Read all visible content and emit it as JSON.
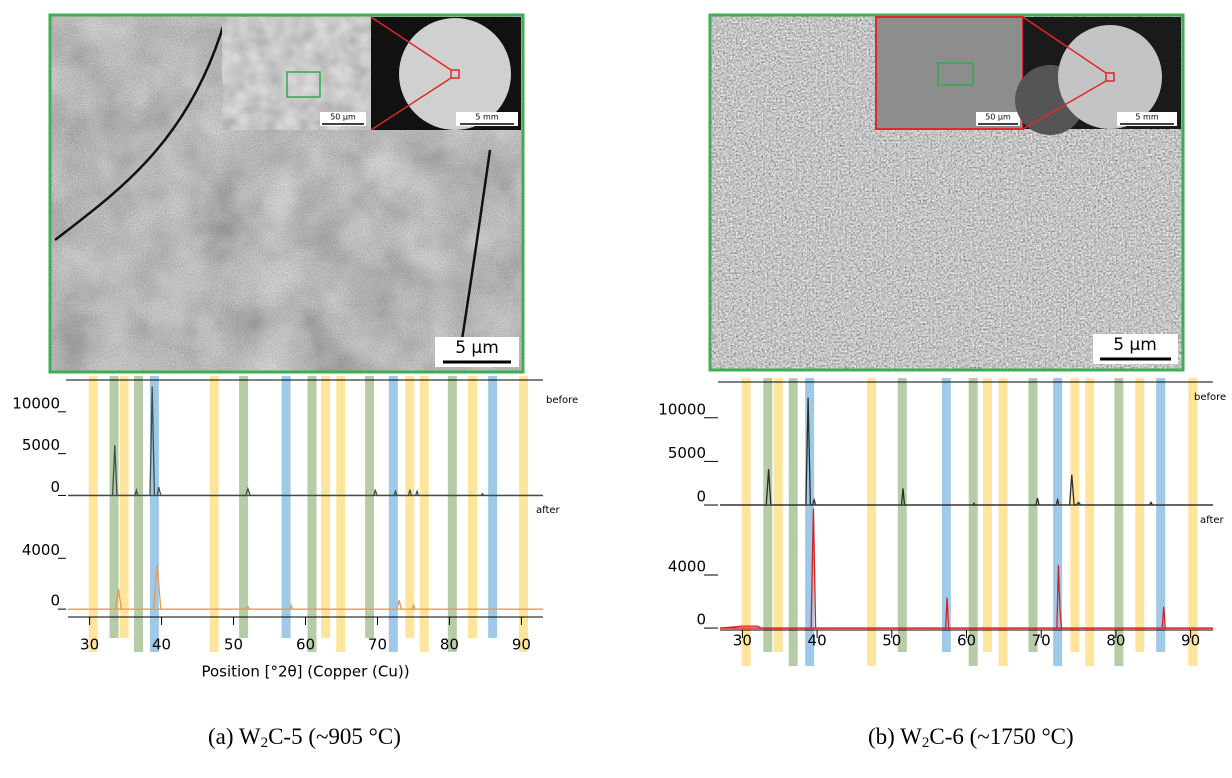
{
  "reference_bands": [
    {
      "color": "#ffe08a",
      "positions": [
        30.5,
        34.8,
        47.3,
        62.8,
        64.9,
        74.5,
        76.5,
        83.2,
        90.3
      ]
    },
    {
      "color": "#a8c398",
      "positions": [
        33.4,
        36.8,
        51.4,
        60.9,
        68.9,
        80.4
      ]
    },
    {
      "color": "#8dc0e4",
      "positions": [
        39.0,
        57.3,
        72.2,
        86.0
      ]
    }
  ],
  "panels": [
    {
      "caption": {
        "prefix": "(a) W",
        "subscript": "2",
        "suffix": "C-5 (~905 °C)"
      },
      "sem": {
        "scale_bar": "5 µm",
        "inset_scale": "50 µm",
        "overview_scale": "5 mm"
      },
      "xrd": {
        "type": "line",
        "xlim": [
          27,
          93
        ],
        "xticks": [
          30,
          40,
          50,
          60,
          70,
          80,
          90
        ],
        "x_label": "Position [°2θ] (Copper (Cu))",
        "subplots": [
          {
            "label": "before",
            "color": "#3f4d47",
            "ylim": [
              -1500,
              13800
            ],
            "yticks": [
              0,
              5000,
              10000
            ],
            "x": [
              27,
              33.2,
              33.5,
              33.8,
              36.3,
              36.5,
              36.7,
              38.4,
              38.7,
              39.0,
              39.4,
              39.6,
              39.9,
              51.7,
              52,
              52.3,
              69.5,
              69.7,
              69.9,
              72.3,
              72.5,
              72.7,
              74.3,
              74.5,
              74.7,
              75.3,
              75.5,
              75.7,
              84.4,
              84.6,
              84.8,
              93
            ],
            "values": [
              0,
              0,
              6000,
              0,
              0,
              600,
              0,
              0,
              13000,
              0,
              0,
              1000,
              0,
              0,
              800,
              0,
              0,
              700,
              0,
              0,
              500,
              0,
              0,
              700,
              0,
              0,
              500,
              0,
              0,
              200,
              0,
              0
            ]
          },
          {
            "label": "after",
            "color": "#e59a58",
            "ylim": [
              -700,
              7800
            ],
            "yticks": [
              0,
              4000
            ],
            "x": [
              27,
              33.6,
              34,
              34.4,
              38.9,
              39.4,
              39.9,
              51.8,
              52,
              52.2,
              57.8,
              58,
              58.2,
              72.7,
              73,
              73.3,
              74.8,
              75,
              75.2,
              93
            ],
            "values": [
              0,
              0,
              1600,
              0,
              0,
              3500,
              0,
              0,
              200,
              0,
              0,
              300,
              0,
              0,
              700,
              0,
              0,
              300,
              0,
              0
            ]
          }
        ]
      }
    },
    {
      "caption": {
        "prefix": "(b) W",
        "subscript": "2",
        "suffix": "C-6 (~1750 °C)"
      },
      "sem": {
        "scale_bar": "5 µm",
        "inset_scale": "50 µm",
        "overview_scale": "5 mm"
      },
      "xrd": {
        "type": "line",
        "xlim": [
          27,
          93
        ],
        "xticks": [
          30,
          40,
          50,
          60,
          70,
          80,
          90
        ],
        "subplots": [
          {
            "label": "before",
            "color": "#2b2b2b",
            "ylim": [
              -800,
              14100
            ],
            "yticks": [
              0,
              5000,
              10000
            ],
            "x": [
              27,
              33.2,
              33.5,
              33.8,
              38.5,
              38.8,
              39.1,
              39.4,
              39.6,
              39.8,
              51.3,
              51.5,
              51.7,
              60.9,
              61,
              61.1,
              69.3,
              69.5,
              69.7,
              72.0,
              72.2,
              72.4,
              73.8,
              74.1,
              74.4,
              74.7,
              75,
              75.3,
              84.5,
              84.7,
              84.9,
              93
            ],
            "values": [
              0,
              0,
              4100,
              0,
              0,
              12300,
              0,
              0,
              600,
              0,
              0,
              1900,
              0,
              0,
              200,
              0,
              0,
              800,
              0,
              0,
              600,
              0,
              0,
              3500,
              0,
              0,
              300,
              0,
              0,
              300,
              0,
              0
            ]
          },
          {
            "label": "after",
            "color": "#d81f1f",
            "ylim": [
              -900,
              8750
            ],
            "yticks": [
              0,
              4000
            ],
            "x": [
              27,
              30,
              32,
              32.5,
              39.2,
              39.5,
              39.8,
              57.2,
              57.4,
              57.6,
              72.1,
              72.3,
              72.5,
              72.7,
              86.2,
              86.4,
              86.6,
              93
            ],
            "values": [
              0,
              150,
              150,
              0,
              0,
              9000,
              0,
              0,
              2300,
              0,
              0,
              4750,
              1500,
              0,
              0,
              1600,
              0,
              0
            ]
          }
        ]
      }
    }
  ]
}
